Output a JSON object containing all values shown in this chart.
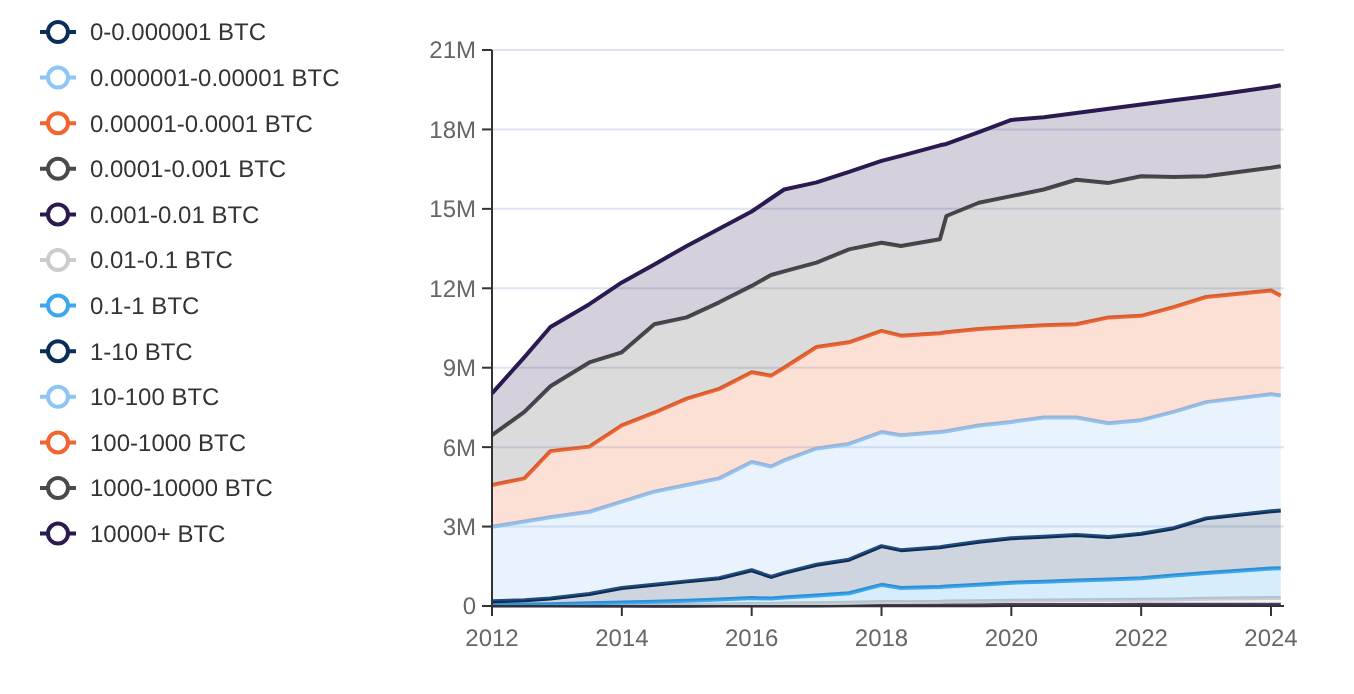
{
  "chart_data": {
    "type": "area",
    "stacked": true,
    "legend": "left",
    "grid": "y",
    "xlim": [
      2012,
      2024.2
    ],
    "xticks": [
      2012,
      2014,
      2016,
      2018,
      2020,
      2022,
      2024
    ],
    "ylim": [
      0,
      21000000
    ],
    "yticks": [
      {
        "value": 0,
        "label": "0"
      },
      {
        "value": 3000000,
        "label": "3M"
      },
      {
        "value": 6000000,
        "label": "6M"
      },
      {
        "value": 9000000,
        "label": "9M"
      },
      {
        "value": 12000000,
        "label": "12M"
      },
      {
        "value": 15000000,
        "label": "15M"
      },
      {
        "value": 18000000,
        "label": "18M"
      },
      {
        "value": 21000000,
        "label": "21M"
      }
    ],
    "x": [
      2012,
      2012.5,
      2012.9,
      2013.5,
      2014,
      2014.5,
      2015,
      2015.5,
      2016,
      2016.3,
      2016.5,
      2017,
      2017.5,
      2018,
      2018.3,
      2018.9,
      2019,
      2019.5,
      2020,
      2020.5,
      2021,
      2021.5,
      2022,
      2022.5,
      2023,
      2024,
      2024.15
    ],
    "series": [
      {
        "name": "0-0.000001 BTC",
        "color": "#0b2e59",
        "values": [
          null,
          null,
          null,
          null,
          null,
          null,
          null,
          null,
          null,
          null,
          null,
          null,
          null,
          null,
          null,
          null,
          null,
          null,
          null,
          null,
          null,
          null,
          null,
          null,
          null,
          null,
          null
        ]
      },
      {
        "name": "0.000001-0.00001 BTC",
        "color": "#8ec5f7",
        "values": [
          null,
          null,
          null,
          null,
          null,
          null,
          null,
          null,
          null,
          null,
          null,
          null,
          null,
          null,
          null,
          null,
          null,
          null,
          null,
          null,
          null,
          null,
          null,
          null,
          null,
          null,
          null
        ]
      },
      {
        "name": "0.00001-0.0001 BTC",
        "color": "#f26430",
        "values": [
          null,
          null,
          null,
          null,
          null,
          null,
          null,
          null,
          null,
          null,
          null,
          null,
          null,
          null,
          null,
          null,
          null,
          null,
          null,
          null,
          null,
          null,
          null,
          null,
          null,
          null,
          null
        ]
      },
      {
        "name": "0.0001-0.001 BTC",
        "color": "#4a4a4a",
        "values": [
          null,
          null,
          null,
          null,
          null,
          null,
          null,
          null,
          null,
          null,
          null,
          null,
          null,
          null,
          null,
          null,
          null,
          null,
          null,
          null,
          null,
          null,
          null,
          null,
          null,
          null,
          null
        ]
      },
      {
        "name": "0.001-0.01 BTC",
        "color": "#2b1a4f",
        "values": [
          10000,
          10000,
          10000,
          10000,
          10000,
          10000,
          10000,
          20000,
          20000,
          20000,
          20000,
          20000,
          30000,
          30000,
          30000,
          30000,
          30000,
          30000,
          40000,
          40000,
          40000,
          40000,
          50000,
          50000,
          50000,
          50000,
          50000
        ]
      },
      {
        "name": "0.01-0.1 BTC",
        "color": "#cccccc",
        "values": [
          10000,
          10000,
          10000,
          20000,
          20000,
          30000,
          40000,
          40000,
          60000,
          60000,
          70000,
          80000,
          90000,
          120000,
          120000,
          130000,
          140000,
          150000,
          160000,
          170000,
          180000,
          190000,
          190000,
          200000,
          220000,
          250000,
          250000
        ]
      },
      {
        "name": "0.1-1 BTC",
        "color": "#3aa7f0",
        "values": [
          30000,
          40000,
          50000,
          70000,
          100000,
          120000,
          150000,
          190000,
          220000,
          200000,
          230000,
          300000,
          360000,
          650000,
          530000,
          560000,
          570000,
          620000,
          680000,
          710000,
          740000,
          770000,
          810000,
          900000,
          980000,
          1120000,
          1130000
        ]
      },
      {
        "name": "1-10 BTC",
        "color": "#0b2e59",
        "values": [
          130000,
          160000,
          210000,
          350000,
          550000,
          640000,
          730000,
          800000,
          1050000,
          820000,
          930000,
          1160000,
          1270000,
          1460000,
          1430000,
          1500000,
          1520000,
          1630000,
          1680000,
          1700000,
          1720000,
          1610000,
          1680000,
          1790000,
          2060000,
          2160000,
          2180000
        ]
      },
      {
        "name": "10-100 BTC",
        "color": "#8ec5f7",
        "values": [
          2810000,
          2970000,
          3070000,
          3110000,
          3260000,
          3520000,
          3640000,
          3770000,
          4090000,
          4170000,
          4250000,
          4390000,
          4370000,
          4310000,
          4340000,
          4350000,
          4340000,
          4390000,
          4390000,
          4500000,
          4440000,
          4290000,
          4290000,
          4390000,
          4390000,
          4420000,
          4340000
        ]
      },
      {
        "name": "100-1000 BTC",
        "color": "#f26430",
        "values": [
          1580000,
          1630000,
          2500000,
          2460000,
          2880000,
          2980000,
          3260000,
          3380000,
          3390000,
          3430000,
          3500000,
          3830000,
          3840000,
          3820000,
          3760000,
          3730000,
          3740000,
          3640000,
          3590000,
          3480000,
          3520000,
          4000000,
          3940000,
          3960000,
          3970000,
          3920000,
          3770000
        ]
      },
      {
        "name": "1000-10000 BTC",
        "color": "#4a4a4a",
        "values": [
          1880000,
          2510000,
          2450000,
          3180000,
          2760000,
          3340000,
          3070000,
          3270000,
          3260000,
          3800000,
          3640000,
          3190000,
          3510000,
          3330000,
          3390000,
          3550000,
          4390000,
          4770000,
          4940000,
          5130000,
          5460000,
          5080000,
          5270000,
          4910000,
          4560000,
          4630000,
          4890000
        ]
      },
      {
        "name": "10000+ BTC",
        "color": "#2b1a4f",
        "values": [
          1580000,
          2070000,
          2240000,
          2200000,
          2640000,
          2260000,
          2700000,
          2780000,
          2810000,
          2900000,
          3090000,
          3030000,
          2930000,
          3090000,
          3400000,
          3550000,
          2720000,
          2670000,
          2880000,
          2730000,
          2520000,
          2800000,
          2710000,
          2900000,
          3020000,
          3050000,
          3060000
        ]
      }
    ]
  }
}
